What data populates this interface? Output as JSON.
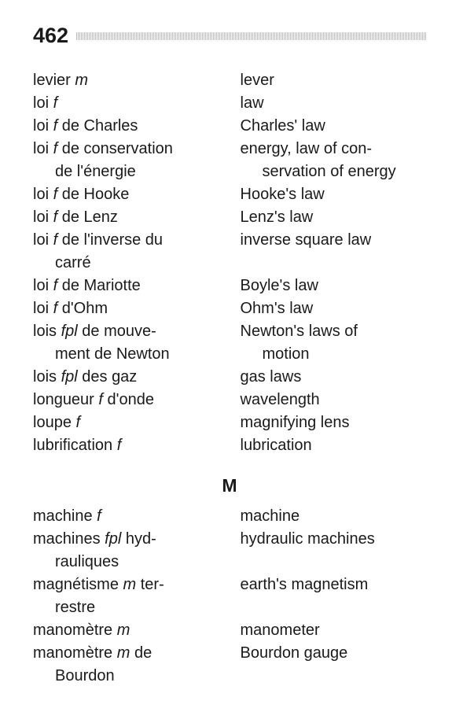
{
  "page": {
    "number": "462",
    "background_color": "#ffffff",
    "text_color": "#1a1a1a",
    "rule_color": "#bdbdbd",
    "font_family": "Arial, Helvetica, sans-serif",
    "body_fontsize": 20,
    "pagenum_fontsize": 27,
    "section_fontsize": 23
  },
  "sections": {
    "L": {
      "entries": [
        {
          "fr_term": "levier",
          "fr_gender": "m",
          "fr_rest": "",
          "fr_cont": "",
          "en": "lever",
          "en_cont": ""
        },
        {
          "fr_term": "loi",
          "fr_gender": "f",
          "fr_rest": "",
          "fr_cont": "",
          "en": "law",
          "en_cont": ""
        },
        {
          "fr_term": "loi",
          "fr_gender": "f",
          "fr_rest": " de Charles",
          "fr_cont": "",
          "en": "Charles' law",
          "en_cont": ""
        },
        {
          "fr_term": "loi",
          "fr_gender": "f",
          "fr_rest": " de conservation",
          "fr_cont": "de l'énergie",
          "en": "energy, law of con-",
          "en_cont": "servation of energy"
        },
        {
          "fr_term": "loi",
          "fr_gender": "f",
          "fr_rest": " de Hooke",
          "fr_cont": "",
          "en": "Hooke's law",
          "en_cont": ""
        },
        {
          "fr_term": "loi",
          "fr_gender": "f",
          "fr_rest": " de Lenz",
          "fr_cont": "",
          "en": "Lenz's law",
          "en_cont": ""
        },
        {
          "fr_term": "loi",
          "fr_gender": "f",
          "fr_rest": " de l'inverse du",
          "fr_cont": "carré",
          "en": "inverse square law",
          "en_cont": ""
        },
        {
          "fr_term": "loi",
          "fr_gender": "f",
          "fr_rest": " de Mariotte",
          "fr_cont": "",
          "en": "Boyle's law",
          "en_cont": ""
        },
        {
          "fr_term": "loi",
          "fr_gender": "f",
          "fr_rest": " d'Ohm",
          "fr_cont": "",
          "en": "Ohm's law",
          "en_cont": ""
        },
        {
          "fr_term": "lois",
          "fr_gender": "fpl",
          "fr_rest": " de mouve-",
          "fr_cont": "ment de Newton",
          "en": "Newton's laws of",
          "en_cont": "motion"
        },
        {
          "fr_term": "lois",
          "fr_gender": "fpl",
          "fr_rest": " des gaz",
          "fr_cont": "",
          "en": "gas laws",
          "en_cont": ""
        },
        {
          "fr_term": "longueur",
          "fr_gender": "f",
          "fr_rest": " d'onde",
          "fr_cont": "",
          "en": "wavelength",
          "en_cont": ""
        },
        {
          "fr_term": "loupe",
          "fr_gender": "f",
          "fr_rest": "",
          "fr_cont": "",
          "en": "magnifying lens",
          "en_cont": ""
        },
        {
          "fr_term": "lubrification",
          "fr_gender": "f",
          "fr_rest": "",
          "fr_cont": "",
          "en": "lubrication",
          "en_cont": ""
        }
      ]
    },
    "M": {
      "heading": "M",
      "entries": [
        {
          "fr_term": "machine",
          "fr_gender": "f",
          "fr_rest": "",
          "fr_cont": "",
          "en": "machine",
          "en_cont": ""
        },
        {
          "fr_term": "machines",
          "fr_gender": "fpl",
          "fr_rest": " hyd-",
          "fr_cont": "rauliques",
          "en": "hydraulic machines",
          "en_cont": ""
        },
        {
          "fr_term": "magnétisme",
          "fr_gender": "m",
          "fr_rest": " ter-",
          "fr_cont": "restre",
          "en": "earth's magnetism",
          "en_cont": ""
        },
        {
          "fr_term": "manomètre",
          "fr_gender": "m",
          "fr_rest": "",
          "fr_cont": "",
          "en": "manometer",
          "en_cont": ""
        },
        {
          "fr_term": "manomètre",
          "fr_gender": "m",
          "fr_rest": " de",
          "fr_cont": "Bourdon",
          "en": "Bourdon gauge",
          "en_cont": ""
        }
      ]
    }
  }
}
